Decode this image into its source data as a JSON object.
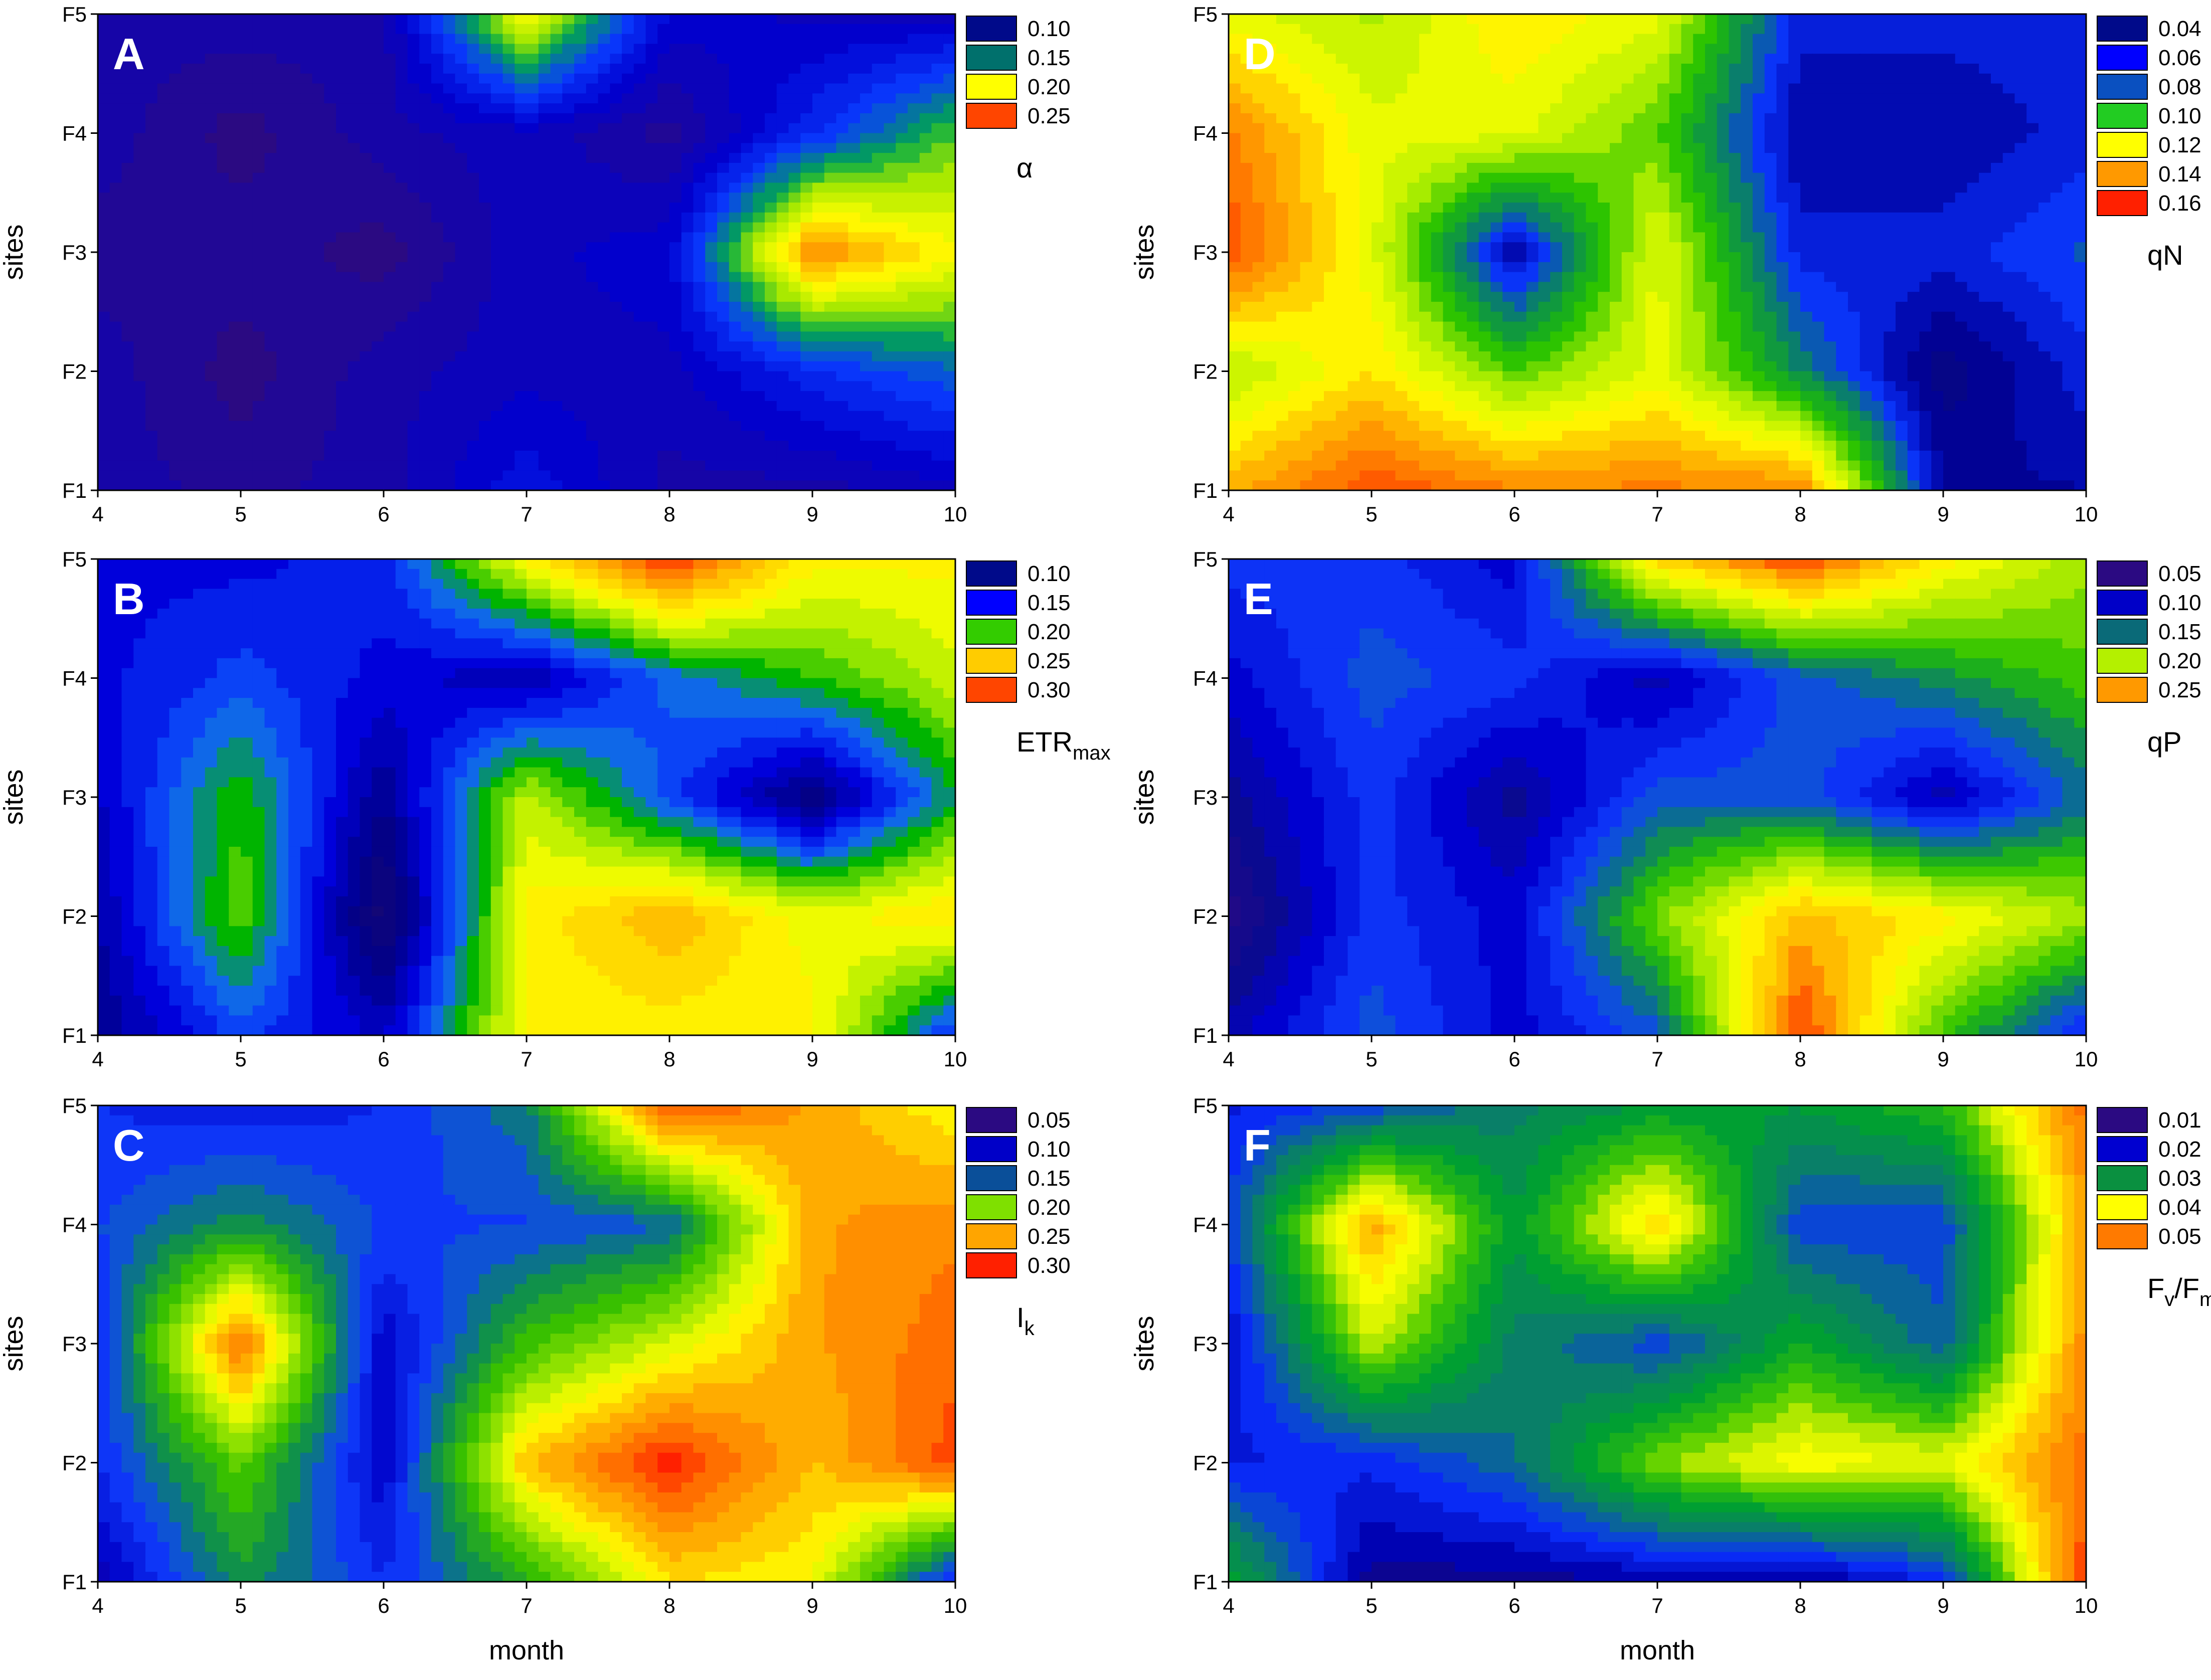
{
  "figure": {
    "xlabel": "month",
    "ylabel": "sites"
  },
  "chart_data": [
    {
      "type": "heatmap",
      "panel_label": "A",
      "variable_label": "α",
      "x": [
        4,
        5,
        6,
        7,
        8,
        9,
        10
      ],
      "y": [
        "F1",
        "F2",
        "F3",
        "F4",
        "F5"
      ],
      "x_ticks": [
        "4",
        "5",
        "6",
        "7",
        "8",
        "9",
        "10"
      ],
      "y_ticks": [
        "F1",
        "F2",
        "F3",
        "F4",
        "F5"
      ],
      "legend": [
        {
          "label": "0.10",
          "color": "#000a8a"
        },
        {
          "label": "0.15",
          "color": "#00706c"
        },
        {
          "label": "0.20",
          "color": "#ffff00"
        },
        {
          "label": "0.25",
          "color": "#ff4500"
        }
      ],
      "z": [
        [
          0.08,
          0.07,
          0.08,
          0.11,
          0.08,
          0.08,
          0.09
        ],
        [
          0.08,
          0.06,
          0.08,
          0.09,
          0.09,
          0.12,
          0.14
        ],
        [
          0.07,
          0.07,
          0.06,
          0.09,
          0.1,
          0.25,
          0.21
        ],
        [
          0.08,
          0.06,
          0.08,
          0.09,
          0.07,
          0.12,
          0.17
        ],
        [
          0.08,
          0.08,
          0.08,
          0.21,
          0.1,
          0.09,
          0.09
        ]
      ],
      "scale": {
        "stops": [
          [
            0.06,
            "#2b0a82"
          ],
          [
            0.1,
            "#0000d0"
          ],
          [
            0.13,
            "#0a3cff"
          ],
          [
            0.16,
            "#00a84a"
          ],
          [
            0.18,
            "#9be600"
          ],
          [
            0.21,
            "#ffff00"
          ],
          [
            0.24,
            "#ffa500"
          ],
          [
            0.27,
            "#ff2000"
          ]
        ]
      }
    },
    {
      "type": "heatmap",
      "panel_label": "B",
      "variable_label": "ETR",
      "variable_sub": "max",
      "x": [
        4,
        5,
        6,
        7,
        8,
        9,
        10
      ],
      "y": [
        "F1",
        "F2",
        "F3",
        "F4",
        "F5"
      ],
      "x_ticks": [
        "4",
        "5",
        "6",
        "7",
        "8",
        "9",
        "10"
      ],
      "y_ticks": [
        "F1",
        "F2",
        "F3",
        "F4",
        "F5"
      ],
      "legend": [
        {
          "label": "0.10",
          "color": "#000a8a"
        },
        {
          "label": "0.15",
          "color": "#0000ff"
        },
        {
          "label": "0.20",
          "color": "#33cc00"
        },
        {
          "label": "0.25",
          "color": "#ffcc00"
        },
        {
          "label": "0.30",
          "color": "#ff4500"
        }
      ],
      "z": [
        [
          0.1,
          0.15,
          0.12,
          0.24,
          0.24,
          0.24,
          0.14
        ],
        [
          0.11,
          0.2,
          0.07,
          0.24,
          0.27,
          0.23,
          0.25
        ],
        [
          0.12,
          0.19,
          0.1,
          0.22,
          0.15,
          0.09,
          0.18
        ],
        [
          0.13,
          0.15,
          0.13,
          0.11,
          0.16,
          0.19,
          0.22
        ],
        [
          0.13,
          0.13,
          0.14,
          0.24,
          0.31,
          0.24,
          0.24
        ]
      ],
      "scale": {
        "stops": [
          [
            0.06,
            "#1a0a6e"
          ],
          [
            0.1,
            "#00008a"
          ],
          [
            0.13,
            "#0000e0"
          ],
          [
            0.16,
            "#1060ff"
          ],
          [
            0.185,
            "#00b400"
          ],
          [
            0.21,
            "#a0ea00"
          ],
          [
            0.235,
            "#ffff00"
          ],
          [
            0.26,
            "#ffcc00"
          ],
          [
            0.285,
            "#ff8800"
          ],
          [
            0.31,
            "#ff2000"
          ]
        ]
      }
    },
    {
      "type": "heatmap",
      "panel_label": "C",
      "variable_label": "I",
      "variable_sub": "k",
      "x": [
        4,
        5,
        6,
        7,
        8,
        9,
        10
      ],
      "y": [
        "F1",
        "F2",
        "F3",
        "F4",
        "F5"
      ],
      "x_ticks": [
        "4",
        "5",
        "6",
        "7",
        "8",
        "9",
        "10"
      ],
      "y_ticks": [
        "F1",
        "F2",
        "F3",
        "F4",
        "F5"
      ],
      "legend": [
        {
          "label": "0.05",
          "color": "#2b0a82"
        },
        {
          "label": "0.10",
          "color": "#0000c8"
        },
        {
          "label": "0.15",
          "color": "#0a4f99"
        },
        {
          "label": "0.20",
          "color": "#7fe000"
        },
        {
          "label": "0.25",
          "color": "#ffa500"
        },
        {
          "label": "0.30",
          "color": "#ff2000"
        }
      ],
      "z": [
        [
          0.09,
          0.16,
          0.12,
          0.17,
          0.24,
          0.23,
          0.11
        ],
        [
          0.12,
          0.19,
          0.1,
          0.25,
          0.3,
          0.25,
          0.29
        ],
        [
          0.12,
          0.28,
          0.1,
          0.18,
          0.22,
          0.26,
          0.28
        ],
        [
          0.13,
          0.16,
          0.13,
          0.13,
          0.14,
          0.26,
          0.27
        ],
        [
          0.12,
          0.11,
          0.12,
          0.15,
          0.29,
          0.26,
          0.23
        ]
      ],
      "scale": {
        "stops": [
          [
            0.06,
            "#2b0a82"
          ],
          [
            0.1,
            "#0000c8"
          ],
          [
            0.13,
            "#1040ff"
          ],
          [
            0.155,
            "#0a8a55"
          ],
          [
            0.18,
            "#38c000"
          ],
          [
            0.205,
            "#9be600"
          ],
          [
            0.23,
            "#ffff00"
          ],
          [
            0.255,
            "#ffb000"
          ],
          [
            0.275,
            "#ff7a00"
          ],
          [
            0.3,
            "#ff2000"
          ]
        ]
      }
    },
    {
      "type": "heatmap",
      "panel_label": "D",
      "variable_label": "qN",
      "x": [
        4,
        5,
        6,
        7,
        8,
        9,
        10
      ],
      "y": [
        "F1",
        "F2",
        "F3",
        "F4",
        "F5"
      ],
      "x_ticks": [
        "4",
        "5",
        "6",
        "7",
        "8",
        "9",
        "10"
      ],
      "y_ticks": [
        "F1",
        "F2",
        "F3",
        "F4",
        "F5"
      ],
      "legend": [
        {
          "label": "0.04",
          "color": "#000a8a"
        },
        {
          "label": "0.06",
          "color": "#0000ff"
        },
        {
          "label": "0.08",
          "color": "#0a50c0"
        },
        {
          "label": "0.10",
          "color": "#22cc22"
        },
        {
          "label": "0.12",
          "color": "#ffff00"
        },
        {
          "label": "0.14",
          "color": "#ff9900"
        },
        {
          "label": "0.16",
          "color": "#ff2000"
        }
      ],
      "z": [
        [
          0.14,
          0.16,
          0.15,
          0.15,
          0.15,
          0.05,
          0.05
        ],
        [
          0.11,
          0.13,
          0.1,
          0.12,
          0.08,
          0.04,
          0.06
        ],
        [
          0.16,
          0.12,
          0.05,
          0.12,
          0.06,
          0.06,
          0.07
        ],
        [
          0.15,
          0.12,
          0.12,
          0.1,
          0.05,
          0.05,
          0.06
        ],
        [
          0.12,
          0.11,
          0.13,
          0.12,
          0.06,
          0.06,
          0.06
        ]
      ],
      "scale": {
        "stops": [
          [
            0.035,
            "#0a0a78"
          ],
          [
            0.05,
            "#00009a"
          ],
          [
            0.065,
            "#0a30ff"
          ],
          [
            0.08,
            "#0a8a55"
          ],
          [
            0.095,
            "#20c000"
          ],
          [
            0.11,
            "#b4f000"
          ],
          [
            0.125,
            "#ffff00"
          ],
          [
            0.14,
            "#ffb000"
          ],
          [
            0.155,
            "#ff6a00"
          ],
          [
            0.17,
            "#ff1a00"
          ]
        ]
      }
    },
    {
      "type": "heatmap",
      "panel_label": "E",
      "variable_label": "qP",
      "x": [
        4,
        5,
        6,
        7,
        8,
        9,
        10
      ],
      "y": [
        "F1",
        "F2",
        "F3",
        "F4",
        "F5"
      ],
      "x_ticks": [
        "4",
        "5",
        "6",
        "7",
        "8",
        "9",
        "10"
      ],
      "y_ticks": [
        "F1",
        "F2",
        "F3",
        "F4",
        "F5"
      ],
      "legend": [
        {
          "label": "0.05",
          "color": "#2b0a82"
        },
        {
          "label": "0.10",
          "color": "#0000c8"
        },
        {
          "label": "0.15",
          "color": "#0a6a78"
        },
        {
          "label": "0.20",
          "color": "#b4f000"
        },
        {
          "label": "0.25",
          "color": "#ff9900"
        }
      ],
      "z": [
        [
          0.09,
          0.13,
          0.1,
          0.13,
          0.27,
          0.17,
          0.11
        ],
        [
          0.06,
          0.12,
          0.1,
          0.18,
          0.24,
          0.22,
          0.19
        ],
        [
          0.08,
          0.12,
          0.08,
          0.13,
          0.13,
          0.09,
          0.14
        ],
        [
          0.1,
          0.13,
          0.12,
          0.09,
          0.13,
          0.15,
          0.17
        ],
        [
          0.12,
          0.12,
          0.1,
          0.23,
          0.27,
          0.22,
          0.19
        ]
      ],
      "scale": {
        "stops": [
          [
            0.05,
            "#2b0a82"
          ],
          [
            0.08,
            "#0a0a90"
          ],
          [
            0.1,
            "#0000d0"
          ],
          [
            0.125,
            "#1040ff"
          ],
          [
            0.145,
            "#0a7a70"
          ],
          [
            0.165,
            "#22c000"
          ],
          [
            0.19,
            "#a8ea00"
          ],
          [
            0.215,
            "#ffff00"
          ],
          [
            0.24,
            "#ffbb00"
          ],
          [
            0.27,
            "#ff3000"
          ]
        ]
      }
    },
    {
      "type": "heatmap",
      "panel_label": "F",
      "variable_label": "F",
      "variable_sub": "v",
      "variable_mid": "/F",
      "variable_sub2": "m",
      "x": [
        4,
        5,
        6,
        7,
        8,
        9,
        10
      ],
      "y": [
        "F1",
        "F2",
        "F3",
        "F4",
        "F5"
      ],
      "x_ticks": [
        "4",
        "5",
        "6",
        "7",
        "8",
        "9",
        "10"
      ],
      "y_ticks": [
        "F1",
        "F2",
        "F3",
        "F4",
        "F5"
      ],
      "legend": [
        {
          "label": "0.01",
          "color": "#2b0a82"
        },
        {
          "label": "0.02",
          "color": "#0000d0"
        },
        {
          "label": "0.03",
          "color": "#0a9040"
        },
        {
          "label": "0.04",
          "color": "#ffff00"
        },
        {
          "label": "0.05",
          "color": "#ff7a00"
        }
      ],
      "z": [
        [
          0.03,
          0.012,
          0.012,
          0.013,
          0.012,
          0.018,
          0.055
        ],
        [
          0.017,
          0.018,
          0.023,
          0.036,
          0.042,
          0.04,
          0.052
        ],
        [
          0.015,
          0.038,
          0.025,
          0.02,
          0.03,
          0.022,
          0.05
        ],
        [
          0.02,
          0.048,
          0.028,
          0.045,
          0.02,
          0.02,
          0.048
        ],
        [
          0.017,
          0.02,
          0.025,
          0.028,
          0.028,
          0.032,
          0.052
        ]
      ],
      "scale": {
        "stops": [
          [
            0.01,
            "#1a0a6e"
          ],
          [
            0.014,
            "#0000b0"
          ],
          [
            0.019,
            "#0a30ff"
          ],
          [
            0.024,
            "#0a7a70"
          ],
          [
            0.029,
            "#00a030"
          ],
          [
            0.034,
            "#40c800"
          ],
          [
            0.038,
            "#ccf000"
          ],
          [
            0.042,
            "#ffff00"
          ],
          [
            0.047,
            "#ffb000"
          ],
          [
            0.052,
            "#ff7000"
          ],
          [
            0.056,
            "#ff2000"
          ]
        ]
      }
    }
  ]
}
